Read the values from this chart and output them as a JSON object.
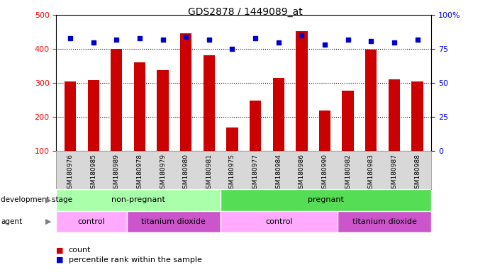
{
  "title": "GDS2878 / 1449089_at",
  "categories": [
    "GSM180976",
    "GSM180985",
    "GSM180989",
    "GSM180978",
    "GSM180979",
    "GSM180980",
    "GSM180981",
    "GSM180975",
    "GSM180977",
    "GSM180984",
    "GSM180986",
    "GSM180990",
    "GSM180982",
    "GSM180983",
    "GSM180987",
    "GSM180988"
  ],
  "bar_values": [
    305,
    308,
    400,
    360,
    338,
    447,
    382,
    170,
    248,
    315,
    452,
    220,
    278,
    398,
    310,
    305
  ],
  "percentile_values": [
    83,
    80,
    82,
    83,
    82,
    84,
    82,
    75,
    83,
    80,
    85,
    78,
    82,
    81,
    80,
    82
  ],
  "bar_color": "#cc0000",
  "percentile_color": "#0000cc",
  "ylim_left": [
    100,
    500
  ],
  "ylim_right": [
    0,
    100
  ],
  "yticks_left": [
    100,
    200,
    300,
    400,
    500
  ],
  "yticks_right": [
    0,
    25,
    50,
    75,
    100
  ],
  "grid_values": [
    200,
    300,
    400
  ],
  "dev_stage_groups": [
    {
      "label": "non-pregnant",
      "start": 0,
      "end": 6,
      "color": "#aaffaa"
    },
    {
      "label": "pregnant",
      "start": 7,
      "end": 15,
      "color": "#55dd55"
    }
  ],
  "agent_groups": [
    {
      "label": "control",
      "start": 0,
      "end": 2,
      "color": "#ffaaff"
    },
    {
      "label": "titanium dioxide",
      "start": 3,
      "end": 6,
      "color": "#cc55cc"
    },
    {
      "label": "control",
      "start": 7,
      "end": 11,
      "color": "#ffaaff"
    },
    {
      "label": "titanium dioxide",
      "start": 12,
      "end": 15,
      "color": "#cc55cc"
    }
  ],
  "background_color": "#ffffff",
  "xtick_bg_color": "#d8d8d8",
  "border_color": "#888888",
  "pct_label": "100%",
  "right_yticks_labels": [
    "0",
    "25",
    "50",
    "75",
    "100%"
  ],
  "legend_items": [
    {
      "label": "count",
      "color": "#cc0000"
    },
    {
      "label": "percentile rank within the sample",
      "color": "#0000cc"
    }
  ]
}
